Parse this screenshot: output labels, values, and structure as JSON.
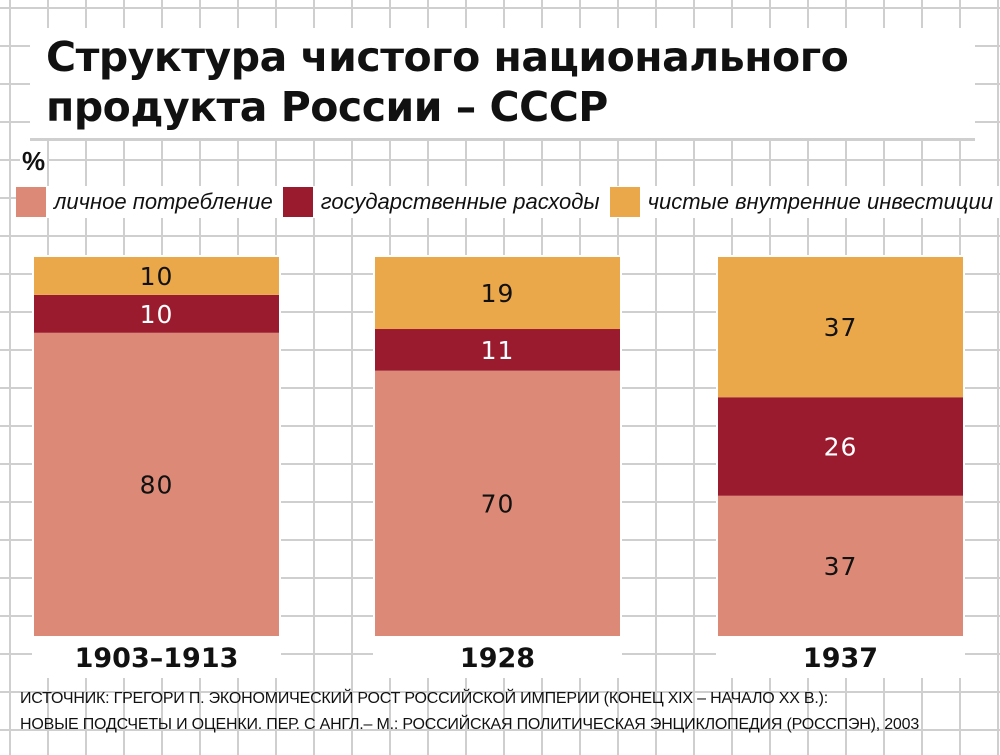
{
  "title": "Структура чистого национального продукта России – СССР",
  "title_lines": [
    "Структура чистого национального",
    "продукта России – СССР"
  ],
  "unit": "%",
  "colors": {
    "consumption": "#DC8A77",
    "government": "#9B1B2E",
    "investment": "#EBA84A"
  },
  "chart_data": {
    "type": "bar",
    "stacked": true,
    "categories": [
      "1903–1913",
      "1928",
      "1937"
    ],
    "series": [
      {
        "name": "личное потребление",
        "values": [
          80,
          70,
          37
        ]
      },
      {
        "name": "государственные расходы",
        "values": [
          10,
          11,
          26
        ]
      },
      {
        "name": "чистые внутренние инвестиции",
        "values": [
          10,
          19,
          37
        ]
      }
    ],
    "ylabel": "%",
    "ylim": [
      0,
      100
    ],
    "legend": "top",
    "grid": true
  },
  "source_lines": [
    "ИСТОЧНИК: ГРЕГОРИ П. ЭКОНОМИЧЕСКИЙ РОСТ РОССИЙСКОЙ ИМПЕРИИ (КОНЕЦ XIX – НАЧАЛО XX В.):",
    "НОВЫЕ ПОДСЧЕТЫ И ОЦЕНКИ. ПЕР. С АНГЛ.– М.: РОССИЙСКАЯ ПОЛИТИЧЕСКАЯ ЭНЦИКЛОПЕДИЯ (РОССПЭН), 2003"
  ]
}
